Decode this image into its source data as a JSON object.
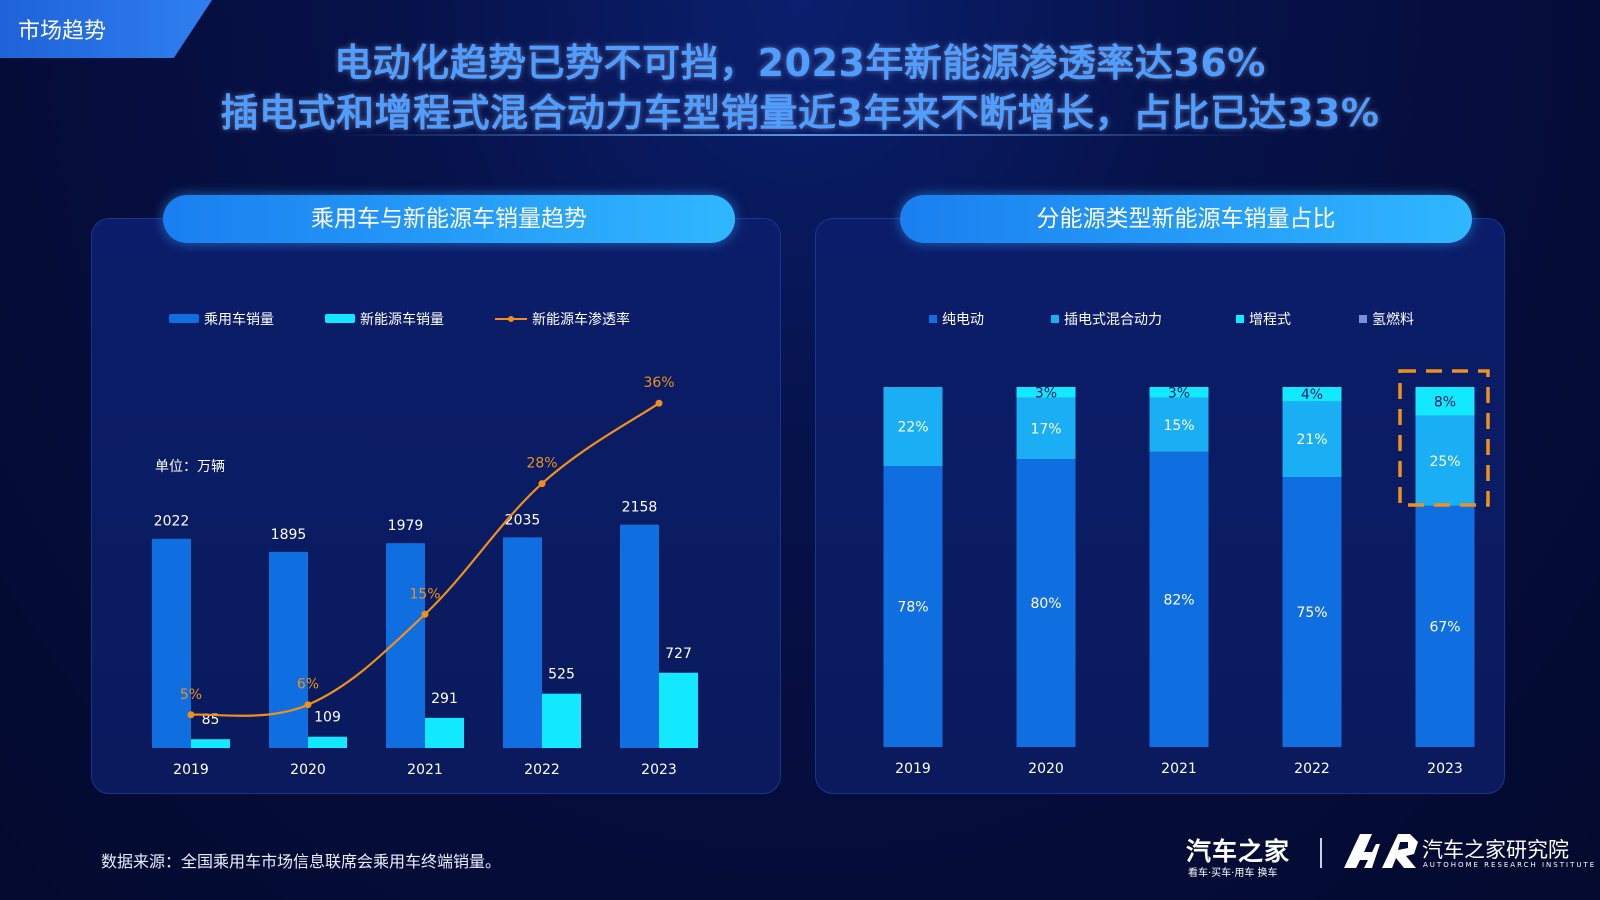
{
  "section_tag": "市场趋势",
  "headline": {
    "line1": "电动化趋势已势不可挡，2023年新能源渗透率达36%",
    "line2": "插电式和增程式混合动力车型销量近3年来不断增长，占比已达33%"
  },
  "left_panel": {
    "title": "乘用车与新能源车销量趋势",
    "unit_label": "单位：万辆"
  },
  "right_panel": {
    "title": "分能源类型新能源车销量占比"
  },
  "footer": {
    "source": "数据来源：全国乘用车市场信息联席会乘用车终端销量。",
    "brand": "汽车之家",
    "brand_tagline": "看车·买车·用车 换车",
    "institute": "汽车之家研究院",
    "institute_en": "AUTOHOME RESEARCH INSTITUTE"
  },
  "colors": {
    "passenger": "#0f6fe0",
    "nev": "#12e8ff",
    "penetration": "#f0901a",
    "bev": "#0f6fe0",
    "phev": "#1aaef5",
    "erev": "#12e8ff",
    "fcev": "#7b8ee0",
    "highlight": "#f0901a"
  },
  "chart_data": [
    {
      "type": "bar",
      "categories": [
        "2019",
        "2020",
        "2021",
        "2022",
        "2023"
      ],
      "series": [
        {
          "name": "乘用车销量",
          "values": [
            2022,
            1895,
            1979,
            2035,
            2158
          ]
        },
        {
          "name": "新能源车销量",
          "values": [
            85,
            109,
            291,
            525,
            727
          ]
        }
      ],
      "line_series": {
        "name": "新能源车渗透率",
        "values": [
          5,
          6,
          15,
          28,
          36
        ],
        "labels": [
          "5%",
          "6%",
          "15%",
          "28%",
          "36%"
        ]
      },
      "value_labels": {
        "passenger": [
          "2022",
          "1895",
          "1979",
          "2035",
          "2158"
        ],
        "nev": [
          "85",
          "109",
          "291",
          "525",
          "727"
        ]
      },
      "legend_placement": "top-left"
    },
    {
      "type": "bar",
      "stacked": true,
      "categories": [
        "2019",
        "2020",
        "2021",
        "2022",
        "2023"
      ],
      "series": [
        {
          "name": "纯电动",
          "values": [
            78,
            80,
            82,
            75,
            67
          ],
          "labels": [
            "78%",
            "80%",
            "82%",
            "75%",
            "67%"
          ]
        },
        {
          "name": "插电式混合动力",
          "values": [
            22,
            17,
            15,
            21,
            25
          ],
          "labels": [
            "22%",
            "17%",
            "15%",
            "21%",
            "25%"
          ]
        },
        {
          "name": "增程式",
          "values": [
            0,
            3,
            3,
            4,
            8
          ],
          "labels": [
            "",
            "3%",
            "3%",
            "4%",
            "8%"
          ]
        },
        {
          "name": "氢燃料",
          "values": [
            0,
            0,
            0,
            0,
            0
          ]
        }
      ],
      "ylim": [
        0,
        100
      ],
      "highlight_category": "2023",
      "legend_placement": "top"
    }
  ]
}
